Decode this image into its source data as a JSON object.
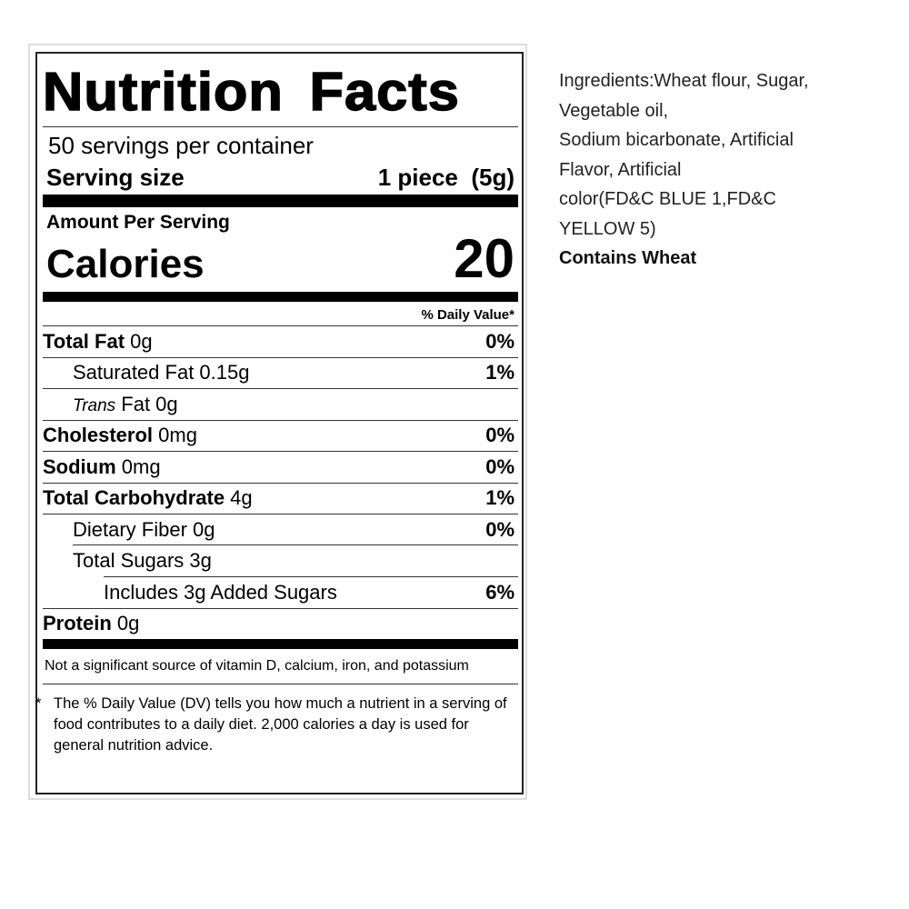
{
  "label": {
    "title": "Nutrition Facts",
    "servings_per_container": "50 servings per container",
    "serving_size_label": "Serving size",
    "serving_size_value": "1 piece  (5g)",
    "amount_per_serving": "Amount Per Serving",
    "calories_label": "Calories",
    "calories_value": "20",
    "daily_value_header": "% Daily Value*",
    "nutrients": [
      {
        "name": "Total Fat",
        "amount": " 0g",
        "dv": "0%",
        "bold": true,
        "indent": 0
      },
      {
        "name": "Saturated Fat",
        "amount": " 0.15g",
        "dv": "1%",
        "bold": false,
        "indent": 1
      },
      {
        "name": "Trans",
        "amount": " Fat 0g",
        "dv": "",
        "bold": false,
        "indent": 1,
        "italic": true
      },
      {
        "name": "Cholesterol",
        "amount": " 0mg",
        "dv": "0%",
        "bold": true,
        "indent": 0
      },
      {
        "name": "Sodium",
        "amount": " 0mg",
        "dv": "0%",
        "bold": true,
        "indent": 0
      },
      {
        "name": "Total Carbohydrate",
        "amount": " 4g",
        "dv": "1%",
        "bold": true,
        "indent": 0
      },
      {
        "name": "Dietary Fiber",
        "amount": " 0g",
        "dv": "0%",
        "bold": false,
        "indent": 1
      },
      {
        "name": "Total Sugars",
        "amount": " 3g",
        "dv": "",
        "bold": false,
        "indent": 1
      },
      {
        "name": "Includes 3g Added Sugars",
        "amount": "",
        "dv": "6%",
        "bold": false,
        "indent": 2
      },
      {
        "name": "Protein",
        "amount": " 0g",
        "dv": "",
        "bold": true,
        "indent": 0
      }
    ],
    "not_significant": "Not a significant source of vitamin D, calcium, iron, and potassium",
    "footnote_marker": "*",
    "footnote": "The % Daily Value (DV) tells you how much a nutrient in a serving of food contributes to a daily diet. 2,000 calories a day is used for general nutrition advice."
  },
  "ingredients": {
    "lines": [
      "Ingredients:Wheat flour, Sugar,",
      "Vegetable oil,",
      "Sodium bicarbonate, Artificial",
      "Flavor, Artificial",
      "color(FD&C BLUE 1,FD&C",
      "YELLOW 5)"
    ],
    "contains": "Contains Wheat"
  }
}
